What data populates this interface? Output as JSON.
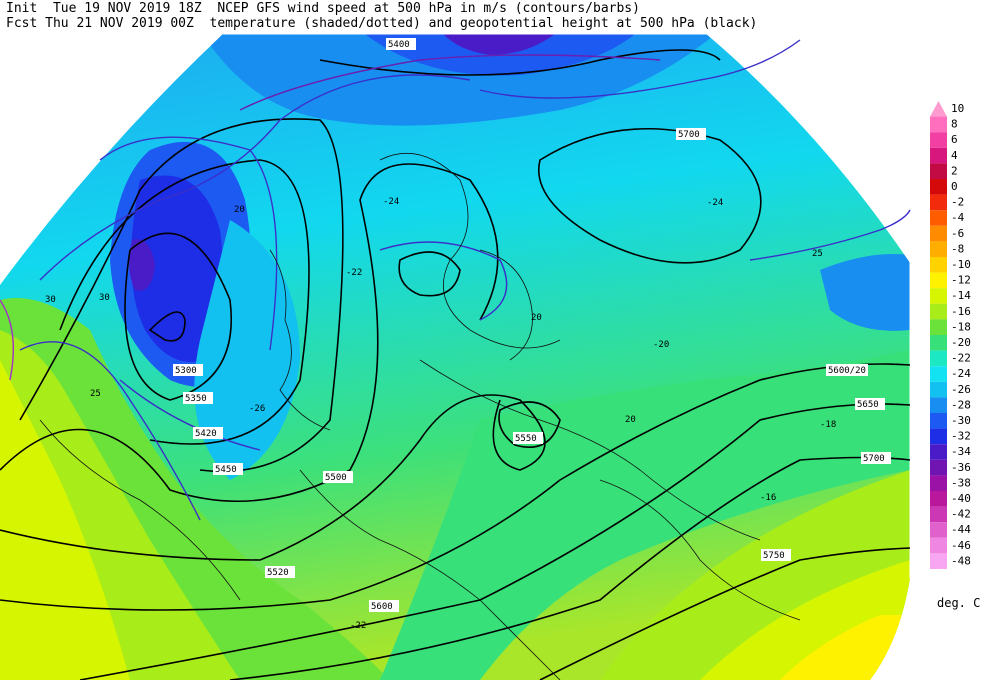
{
  "header": {
    "line1": "Init  Tue 19 NOV 2019 18Z  NCEP GFS wind speed at 500 hPa in m/s (contours/barbs)",
    "line2": "Fcst Thu 21 NOV 2019 00Z  temperature (shaded/dotted) and geopotential height at 500 hPa (black)"
  },
  "legend": {
    "units": "deg. C",
    "levels": [
      {
        "label": "10",
        "color": "#ff9ccf"
      },
      {
        "label": "8",
        "color": "#ff6fbd"
      },
      {
        "label": "6",
        "color": "#f13fa4"
      },
      {
        "label": "4",
        "color": "#d8177e"
      },
      {
        "label": "2",
        "color": "#c20a45"
      },
      {
        "label": "0",
        "color": "#d40a0a"
      },
      {
        "label": "-2",
        "color": "#f22b0c"
      },
      {
        "label": "-4",
        "color": "#ff5c00"
      },
      {
        "label": "-6",
        "color": "#ff8c00"
      },
      {
        "label": "-8",
        "color": "#ffae00"
      },
      {
        "label": "-10",
        "color": "#ffd200"
      },
      {
        "label": "-12",
        "color": "#fff200"
      },
      {
        "label": "-14",
        "color": "#d6f500"
      },
      {
        "label": "-16",
        "color": "#a8ec1a"
      },
      {
        "label": "-18",
        "color": "#6be23a"
      },
      {
        "label": "-20",
        "color": "#38e079"
      },
      {
        "label": "-22",
        "color": "#1de8c4"
      },
      {
        "label": "-24",
        "color": "#12e2f2"
      },
      {
        "label": "-26",
        "color": "#13c1f0"
      },
      {
        "label": "-28",
        "color": "#178ef0"
      },
      {
        "label": "-30",
        "color": "#1c5af2"
      },
      {
        "label": "-32",
        "color": "#1e2ee6"
      },
      {
        "label": "-34",
        "color": "#4a1cc8"
      },
      {
        "label": "-36",
        "color": "#7014b2"
      },
      {
        "label": "-38",
        "color": "#9a12a6"
      },
      {
        "label": "-40",
        "color": "#b9189d"
      },
      {
        "label": "-42",
        "color": "#cc38b4"
      },
      {
        "label": "-44",
        "color": "#e060cc"
      },
      {
        "label": "-46",
        "color": "#ef86e2"
      },
      {
        "label": "-48",
        "color": "#f8a6f1"
      }
    ]
  },
  "height_contours": [
    {
      "label": "5300"
    },
    {
      "label": "5350"
    },
    {
      "label": "5400"
    },
    {
      "label": "5450"
    },
    {
      "label": "5500"
    },
    {
      "label": "5550"
    },
    {
      "label": "5600"
    },
    {
      "label": "5650"
    },
    {
      "label": "5700"
    },
    {
      "label": "5750"
    }
  ],
  "map_labels": {
    "h5400": "5400",
    "h5700_ne": "5700",
    "h5300": "5300",
    "h5350": "5350",
    "h5420": "5420",
    "h5450": "5450",
    "h5500": "5500",
    "h5550": "5550",
    "h5520": "5520",
    "h5600": "5600",
    "h5650": "5650",
    "h5700_e": "5700",
    "h5750": "5750",
    "h5600_20": "5600/20",
    "t24a": "-24",
    "t24b": "-24",
    "t22": "-22",
    "t20": "-20",
    "t26": "-26",
    "t18": "-18",
    "t16": "-16",
    "t22b": "-22",
    "w20a": "20",
    "w20b": "20",
    "w25a": "25",
    "w25b": "25",
    "w30a": "30",
    "w30b": "30",
    "w20c": "20"
  }
}
